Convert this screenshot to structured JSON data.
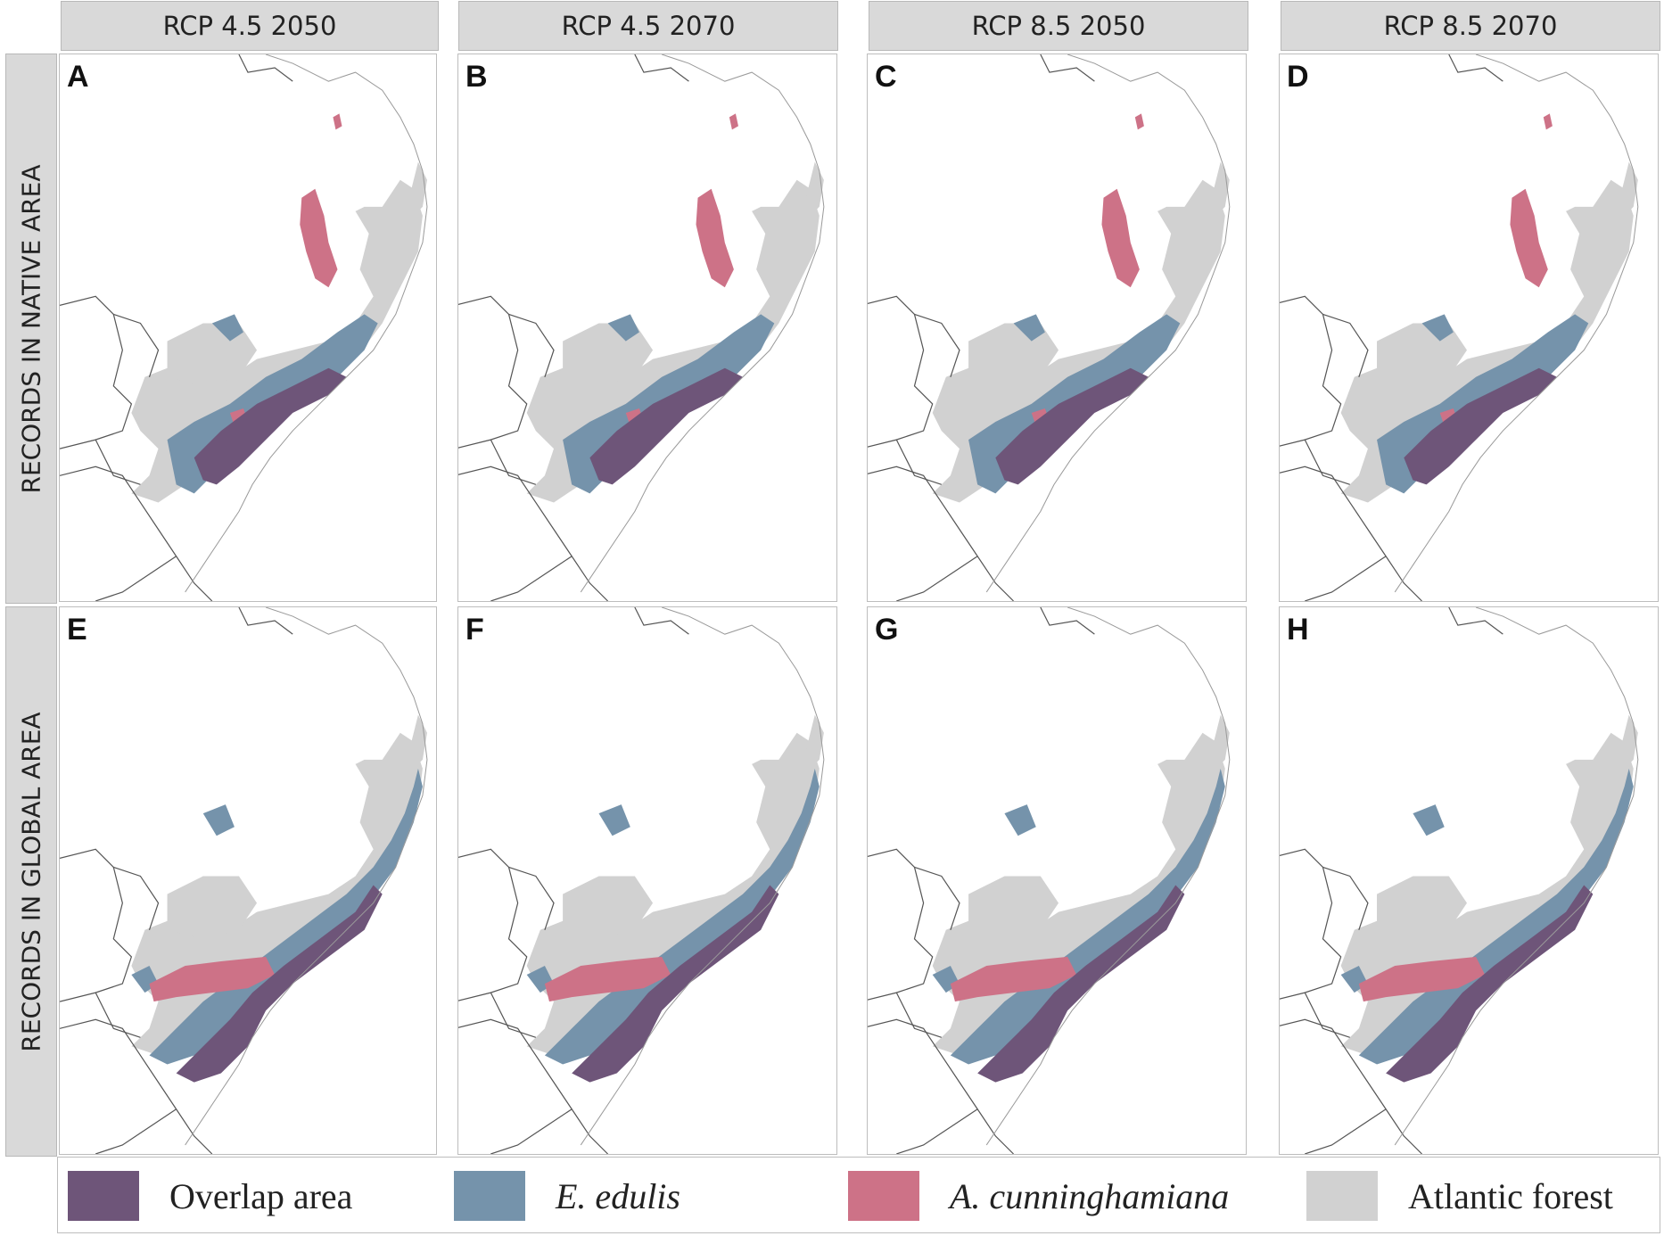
{
  "columns": [
    "RCP 4.5 2050",
    "RCP 4.5 2070",
    "RCP 8.5 2050",
    "RCP 8.5 2070"
  ],
  "rows": [
    "RECORDS  IN NATIVE AREA",
    "RECORDS  IN GLOBAL  AREA"
  ],
  "panels": [
    {
      "letter": "A",
      "row": 0,
      "col": 0,
      "scenario": "RCP 4.5 2050",
      "records": "native"
    },
    {
      "letter": "B",
      "row": 0,
      "col": 1,
      "scenario": "RCP 4.5 2070",
      "records": "native"
    },
    {
      "letter": "C",
      "row": 0,
      "col": 2,
      "scenario": "RCP 8.5 2050",
      "records": "native"
    },
    {
      "letter": "D",
      "row": 0,
      "col": 3,
      "scenario": "RCP 8.5 2070",
      "records": "native"
    },
    {
      "letter": "E",
      "row": 1,
      "col": 0,
      "scenario": "RCP 4.5 2050",
      "records": "global"
    },
    {
      "letter": "F",
      "row": 1,
      "col": 1,
      "scenario": "RCP 4.5 2070",
      "records": "global"
    },
    {
      "letter": "G",
      "row": 1,
      "col": 2,
      "scenario": "RCP 8.5 2050",
      "records": "global"
    },
    {
      "letter": "H",
      "row": 1,
      "col": 3,
      "scenario": "RCP 8.5 2070",
      "records": "global"
    }
  ],
  "legend": [
    {
      "label": "Overlap area",
      "color": "#6e5579",
      "italic": false
    },
    {
      "label": "E. edulis",
      "color": "#7593ab",
      "italic": true
    },
    {
      "label": "A. cunninghamiana",
      "color": "#cd7287",
      "italic": true
    },
    {
      "label": "Atlantic forest",
      "color": "#d1d1d1",
      "italic": false
    }
  ],
  "colors": {
    "overlap": "#6e5579",
    "edulis": "#7593ab",
    "cunninghamiana": "#cd7287",
    "forest": "#d1d1d1",
    "outline": "#555555"
  }
}
